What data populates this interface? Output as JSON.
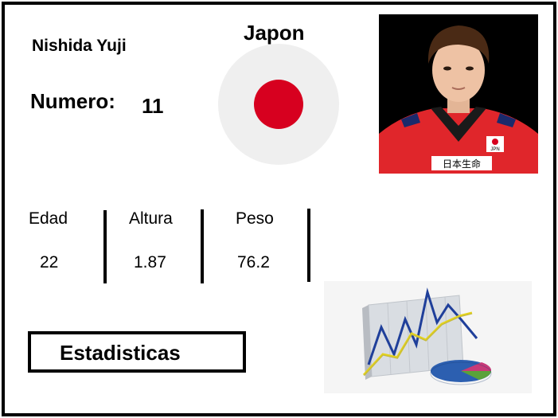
{
  "player": {
    "name": "Nishida Yuji",
    "number_label": "Numero:",
    "number": "11",
    "country": "Japon"
  },
  "stats": [
    {
      "label": "Edad",
      "value": "22"
    },
    {
      "label": "Altura",
      "value": "1.87"
    },
    {
      "label": "Peso",
      "value": "76.2"
    }
  ],
  "actions": {
    "stats_button": "Estadisticas"
  },
  "photo": {
    "jersey_text": "JPN",
    "sponsor_text": "日本生命"
  },
  "colors": {
    "flag_red": "#d7001f",
    "flag_bg": "#efefef",
    "jersey_red": "#e0262b"
  }
}
